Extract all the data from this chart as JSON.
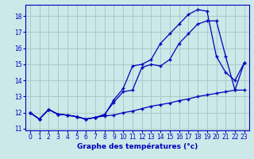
{
  "xlabel": "Graphe des températures (°c)",
  "background_color": "#cce8e8",
  "grid_color": "#aacaca",
  "line_color": "#0000bb",
  "xlim": [
    -0.5,
    23.5
  ],
  "ylim": [
    10.9,
    18.7
  ],
  "yticks": [
    11,
    12,
    13,
    14,
    15,
    16,
    17,
    18
  ],
  "xticks": [
    0,
    1,
    2,
    3,
    4,
    5,
    6,
    7,
    8,
    9,
    10,
    11,
    12,
    13,
    14,
    15,
    16,
    17,
    18,
    19,
    20,
    21,
    22,
    23
  ],
  "hours": [
    0,
    1,
    2,
    3,
    4,
    5,
    6,
    7,
    8,
    9,
    10,
    11,
    12,
    13,
    14,
    15,
    16,
    17,
    18,
    19,
    20,
    21,
    22,
    23
  ],
  "line_upper": [
    12.0,
    11.6,
    12.2,
    11.9,
    11.85,
    11.75,
    11.6,
    11.7,
    11.85,
    12.8,
    13.5,
    14.9,
    15.0,
    15.3,
    16.3,
    16.9,
    17.5,
    18.1,
    18.4,
    18.3,
    15.5,
    14.5,
    14.0,
    15.1
  ],
  "line_mid": [
    12.0,
    11.6,
    12.2,
    11.9,
    11.85,
    11.75,
    11.6,
    11.7,
    11.9,
    12.65,
    13.3,
    13.4,
    14.8,
    15.0,
    14.9,
    15.3,
    16.3,
    16.9,
    17.5,
    17.7,
    17.7,
    15.5,
    13.4,
    15.1
  ],
  "line_lower": [
    12.0,
    11.6,
    12.2,
    11.9,
    11.85,
    11.75,
    11.6,
    11.7,
    11.8,
    11.85,
    12.0,
    12.1,
    12.25,
    12.4,
    12.5,
    12.6,
    12.75,
    12.85,
    13.0,
    13.1,
    13.2,
    13.3,
    13.4,
    13.4
  ]
}
